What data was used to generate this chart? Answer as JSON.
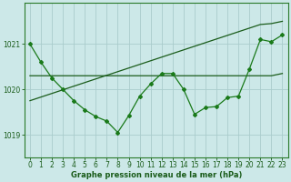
{
  "xlabel": "Graphe pression niveau de la mer (hPa)",
  "bg_color": "#cce8e8",
  "grid_color": "#aacccc",
  "line_color_dark": "#1a5c1a",
  "line_color_main": "#1a7a1a",
  "ylim": [
    1018.5,
    1021.9
  ],
  "xlim": [
    -0.5,
    23.5
  ],
  "yticks": [
    1019,
    1020,
    1021
  ],
  "xticks": [
    0,
    1,
    2,
    3,
    4,
    5,
    6,
    7,
    8,
    9,
    10,
    11,
    12,
    13,
    14,
    15,
    16,
    17,
    18,
    19,
    20,
    21,
    22,
    23
  ],
  "hours": [
    0,
    1,
    2,
    3,
    4,
    5,
    6,
    7,
    8,
    9,
    10,
    11,
    12,
    13,
    14,
    15,
    16,
    17,
    18,
    19,
    20,
    21,
    22,
    23
  ],
  "pressure_main": [
    1021.0,
    1020.6,
    1020.25,
    1020.0,
    1019.75,
    1019.55,
    1019.4,
    1019.3,
    1019.05,
    1019.42,
    1019.85,
    1020.12,
    1020.35,
    1020.35,
    1020.0,
    1019.45,
    1019.6,
    1019.62,
    1019.82,
    1019.85,
    1020.45,
    1021.1,
    1021.05,
    1021.2
  ],
  "trend_flat": [
    1020.3,
    1020.3,
    1020.3,
    1020.3,
    1020.3,
    1020.3,
    1020.3,
    1020.3,
    1020.3,
    1020.3,
    1020.3,
    1020.3,
    1020.3,
    1020.3,
    1020.3,
    1020.3,
    1020.3,
    1020.3,
    1020.3,
    1020.3,
    1020.3,
    1020.3,
    1020.3,
    1020.35
  ],
  "trend_rising": [
    1019.75,
    1019.83,
    1019.91,
    1019.99,
    1020.07,
    1020.15,
    1020.23,
    1020.31,
    1020.39,
    1020.47,
    1020.55,
    1020.63,
    1020.71,
    1020.79,
    1020.87,
    1020.95,
    1021.03,
    1021.11,
    1021.19,
    1021.27,
    1021.35,
    1021.43,
    1021.45,
    1021.5
  ],
  "spine_color": "#2a7a2a",
  "tick_color": "#1a5c1a",
  "tick_fontsize": 5.5,
  "xlabel_fontsize": 6.0
}
